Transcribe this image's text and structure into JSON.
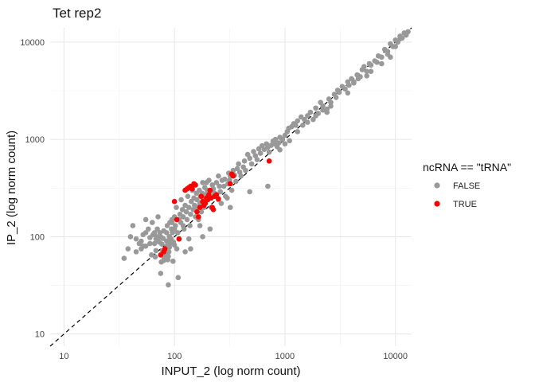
{
  "chart_data": {
    "type": "scatter",
    "title": "Tet rep2",
    "xlabel": "INPUT_2 (log norm count)",
    "ylabel": "IP_2 (log norm count)",
    "x_scale": "log10",
    "y_scale": "log10",
    "xlim": [
      7.5,
      14000
    ],
    "ylim": [
      7.5,
      14000
    ],
    "x_ticks": [
      10,
      100,
      1000,
      10000
    ],
    "y_ticks": [
      10,
      100,
      1000,
      10000
    ],
    "x_tick_labels": [
      "10",
      "100",
      "1000",
      "10000"
    ],
    "y_tick_labels": [
      "10",
      "100",
      "1000",
      "10000"
    ],
    "reference_line": {
      "type": "identity",
      "style": "dashed",
      "color": "#000000"
    },
    "legend": {
      "title": "ncRNA == \"tRNA\"",
      "position": "right",
      "entries": [
        {
          "label": "FALSE",
          "color": "#999999"
        },
        {
          "label": "TRUE",
          "color": "#ff0000"
        }
      ]
    },
    "series": [
      {
        "name": "FALSE",
        "color": "#999999",
        "points": [
          [
            35,
            60
          ],
          [
            38,
            75
          ],
          [
            42,
            130
          ],
          [
            45,
            95
          ],
          [
            50,
            90
          ],
          [
            52,
            80
          ],
          [
            55,
            110
          ],
          [
            55,
            150
          ],
          [
            58,
            120
          ],
          [
            60,
            98
          ],
          [
            62,
            65
          ],
          [
            63,
            140
          ],
          [
            64,
            105
          ],
          [
            66,
            85
          ],
          [
            67,
            62
          ],
          [
            68,
            72
          ],
          [
            70,
            100
          ],
          [
            70,
            92
          ],
          [
            71,
            160
          ],
          [
            72,
            98
          ],
          [
            73,
            88
          ],
          [
            74,
            110
          ],
          [
            75,
            42
          ],
          [
            76,
            55
          ],
          [
            77,
            84
          ],
          [
            78,
            72
          ],
          [
            79,
            96
          ],
          [
            80,
            57
          ],
          [
            80,
            62
          ],
          [
            81,
            67
          ],
          [
            82,
            75
          ],
          [
            83,
            60
          ],
          [
            84,
            68
          ],
          [
            85,
            110
          ],
          [
            85,
            80
          ],
          [
            86,
            90
          ],
          [
            86,
            130
          ],
          [
            87,
            58
          ],
          [
            88,
            63
          ],
          [
            88,
            32
          ],
          [
            89,
            70
          ],
          [
            90,
            100
          ],
          [
            90,
            78
          ],
          [
            91,
            140
          ],
          [
            92,
            85
          ],
          [
            93,
            95
          ],
          [
            94,
            120
          ],
          [
            95,
            150
          ],
          [
            96,
            110
          ],
          [
            97,
            56
          ],
          [
            98,
            88
          ],
          [
            100,
            82
          ],
          [
            100,
            160
          ],
          [
            102,
            130
          ],
          [
            104,
            200
          ],
          [
            105,
            75
          ],
          [
            107,
            110
          ],
          [
            108,
            38
          ],
          [
            110,
            95
          ],
          [
            112,
            170
          ],
          [
            114,
            140
          ],
          [
            115,
            240
          ],
          [
            118,
            190
          ],
          [
            120,
            160
          ],
          [
            122,
            120
          ],
          [
            125,
            210
          ],
          [
            125,
            70
          ],
          [
            128,
            180
          ],
          [
            130,
            150
          ],
          [
            132,
            260
          ],
          [
            135,
            200
          ],
          [
            138,
            130
          ],
          [
            140,
            170
          ],
          [
            142,
            230
          ],
          [
            145,
            300
          ],
          [
            148,
            190
          ],
          [
            150,
            250
          ],
          [
            152,
            210
          ],
          [
            155,
            160
          ],
          [
            158,
            280
          ],
          [
            160,
            240
          ],
          [
            162,
            200
          ],
          [
            165,
            150
          ],
          [
            168,
            300
          ],
          [
            170,
            220
          ],
          [
            172,
            260
          ],
          [
            175,
            180
          ],
          [
            178,
            280
          ],
          [
            180,
            360
          ],
          [
            182,
            240
          ],
          [
            185,
            200
          ],
          [
            188,
            320
          ],
          [
            190,
            270
          ],
          [
            195,
            360
          ],
          [
            198,
            300
          ],
          [
            200,
            250
          ],
          [
            205,
            380
          ],
          [
            210,
            290
          ],
          [
            215,
            200
          ],
          [
            220,
            340
          ],
          [
            225,
            310
          ],
          [
            230,
            280
          ],
          [
            235,
            260
          ],
          [
            240,
            360
          ],
          [
            250,
            420
          ],
          [
            255,
            330
          ],
          [
            260,
            290
          ],
          [
            265,
            220
          ],
          [
            270,
            380
          ],
          [
            280,
            330
          ],
          [
            285,
            390
          ],
          [
            290,
            260
          ],
          [
            300,
            250
          ],
          [
            305,
            350
          ],
          [
            310,
            450
          ],
          [
            315,
            380
          ],
          [
            320,
            420
          ],
          [
            330,
            300
          ],
          [
            340,
            480
          ],
          [
            350,
            430
          ],
          [
            360,
            370
          ],
          [
            370,
            500
          ],
          [
            380,
            560
          ],
          [
            390,
            460
          ],
          [
            400,
            420
          ],
          [
            420,
            520
          ],
          [
            430,
            600
          ],
          [
            440,
            480
          ],
          [
            460,
            700
          ],
          [
            480,
            640
          ],
          [
            500,
            560
          ],
          [
            520,
            750
          ],
          [
            540,
            680
          ],
          [
            560,
            620
          ],
          [
            580,
            800
          ],
          [
            600,
            720
          ],
          [
            620,
            860
          ],
          [
            650,
            790
          ],
          [
            680,
            900
          ],
          [
            700,
            830
          ],
          [
            720,
            740
          ],
          [
            750,
            870
          ],
          [
            780,
            960
          ],
          [
            800,
            900
          ],
          [
            820,
            1000
          ],
          [
            850,
            840
          ],
          [
            880,
            920
          ],
          [
            900,
            1050
          ],
          [
            950,
            1000
          ],
          [
            1000,
            1100
          ],
          [
            1050,
            1200
          ],
          [
            1080,
            1300
          ],
          [
            1100,
            970
          ],
          [
            1150,
            1350
          ],
          [
            1200,
            1450
          ],
          [
            1250,
            1400
          ],
          [
            1300,
            1550
          ],
          [
            1400,
            1700
          ],
          [
            1450,
            1400
          ],
          [
            1500,
            1600
          ],
          [
            1600,
            1750
          ],
          [
            1700,
            1900
          ],
          [
            1800,
            1600
          ],
          [
            1900,
            2100
          ],
          [
            2000,
            1850
          ],
          [
            2100,
            2400
          ],
          [
            2200,
            2200
          ],
          [
            2400,
            2050
          ],
          [
            2500,
            2600
          ],
          [
            2600,
            2400
          ],
          [
            2800,
            2900
          ],
          [
            2900,
            2700
          ],
          [
            3000,
            3200
          ],
          [
            3100,
            3050
          ],
          [
            3300,
            3500
          ],
          [
            3500,
            3300
          ],
          [
            3700,
            3900
          ],
          [
            3800,
            3600
          ],
          [
            4000,
            4200
          ],
          [
            4200,
            3900
          ],
          [
            4500,
            4600
          ],
          [
            4600,
            4200
          ],
          [
            4800,
            4400
          ],
          [
            5000,
            5200
          ],
          [
            5200,
            5600
          ],
          [
            5500,
            5000
          ],
          [
            5800,
            6000
          ],
          [
            6000,
            5800
          ],
          [
            6500,
            6400
          ],
          [
            7000,
            7200
          ],
          [
            7500,
            7000
          ],
          [
            8000,
            8400
          ],
          [
            8500,
            8000
          ],
          [
            9000,
            9600
          ],
          [
            9500,
            9000
          ],
          [
            10000,
            10500
          ],
          [
            10500,
            10000
          ],
          [
            11000,
            11500
          ],
          [
            11500,
            11000
          ],
          [
            12000,
            12400
          ],
          [
            12500,
            11800
          ],
          [
            13000,
            12800
          ],
          [
            10000,
            9000
          ],
          [
            11000,
            10800
          ],
          [
            9000,
            7000
          ],
          [
            8500,
            7500
          ],
          [
            7500,
            6000
          ],
          [
            6800,
            6200
          ],
          [
            6000,
            5000
          ],
          [
            5500,
            4500
          ],
          [
            4200,
            3800
          ],
          [
            3700,
            3000
          ],
          [
            2600,
            2200
          ],
          [
            2400,
            1900
          ],
          [
            2200,
            2000
          ],
          [
            1900,
            1750
          ],
          [
            1600,
            1500
          ],
          [
            1300,
            1200
          ],
          [
            1000,
            900
          ],
          [
            900,
            780
          ],
          [
            700,
            330
          ],
          [
            480,
            290
          ],
          [
            320,
            200
          ],
          [
            250,
            240
          ],
          [
            210,
            120
          ],
          [
            180,
            100
          ],
          [
            170,
            130
          ],
          [
            140,
            75
          ],
          [
            135,
            95
          ],
          [
            120,
            130
          ],
          [
            110,
            150
          ],
          [
            100,
            120
          ],
          [
            95,
            140
          ],
          [
            90,
            100
          ],
          [
            85,
            90
          ],
          [
            80,
            115
          ],
          [
            75,
            100
          ],
          [
            70,
            120
          ],
          [
            68,
            95
          ],
          [
            66,
            110
          ],
          [
            60,
            85
          ],
          [
            55,
            80
          ],
          [
            52,
            105
          ],
          [
            50,
            75
          ],
          [
            48,
            85
          ],
          [
            45,
            70
          ],
          [
            40,
            100
          ]
        ]
      },
      {
        "name": "TRUE",
        "color": "#ff0000",
        "points": [
          [
            75,
            65
          ],
          [
            80,
            70
          ],
          [
            82,
            75
          ],
          [
            100,
            230
          ],
          [
            105,
            150
          ],
          [
            110,
            95
          ],
          [
            125,
            300
          ],
          [
            130,
            310
          ],
          [
            135,
            320
          ],
          [
            140,
            330
          ],
          [
            145,
            310
          ],
          [
            150,
            350
          ],
          [
            155,
            340
          ],
          [
            160,
            180
          ],
          [
            165,
            160
          ],
          [
            170,
            200
          ],
          [
            175,
            260
          ],
          [
            180,
            230
          ],
          [
            185,
            210
          ],
          [
            190,
            220
          ],
          [
            195,
            250
          ],
          [
            200,
            240
          ],
          [
            205,
            270
          ],
          [
            210,
            300
          ],
          [
            215,
            250
          ],
          [
            220,
            200
          ],
          [
            225,
            190
          ],
          [
            230,
            260
          ],
          [
            240,
            270
          ],
          [
            250,
            245
          ],
          [
            320,
            350
          ],
          [
            330,
            440
          ],
          [
            340,
            420
          ],
          [
            720,
            600
          ]
        ]
      }
    ]
  }
}
